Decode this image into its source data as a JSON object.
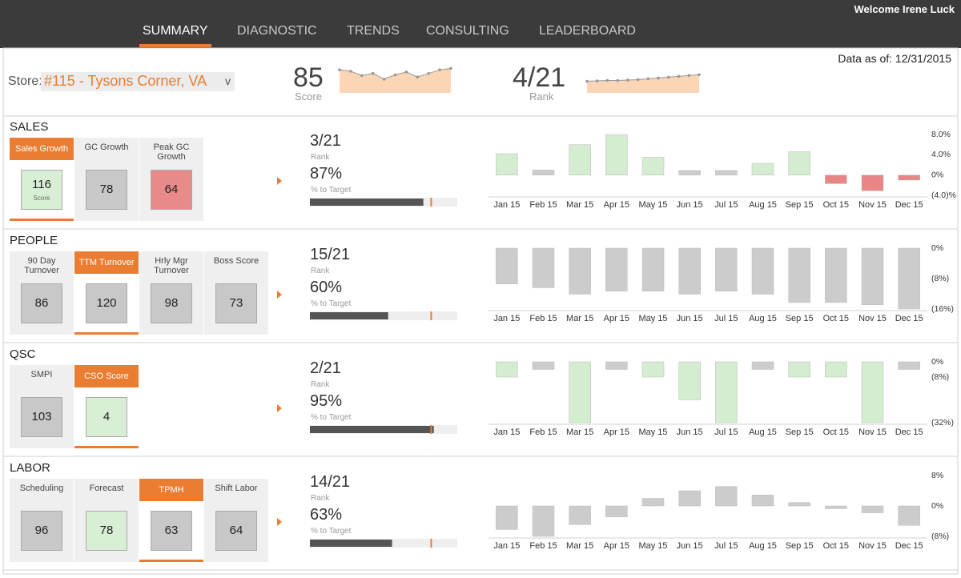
{
  "header": {
    "welcome": "Welcome Irene Luck",
    "tabs": [
      "SUMMARY",
      "DIAGNOSTIC",
      "TRENDS",
      "CONSULTING",
      "LEADERBOARD"
    ],
    "active_tab": 0
  },
  "store": {
    "label": "Store:",
    "name": "#115 - Tysons Corner, VA",
    "caret": "v"
  },
  "score": {
    "value": 85,
    "caption": "Score"
  },
  "rank": {
    "value": "4/21",
    "caption": "Rank"
  },
  "data_as_of": "Data as of: 12/31/2015",
  "sections": [
    {
      "title": "SALES",
      "rank": "3/21",
      "rank_caption": "Rank",
      "pct": {
        "value": 87,
        "label": "87%"
      },
      "pct_caption": "% to Target",
      "target": 93,
      "progress_max": 113,
      "tiles": [
        {
          "label": "Sales Growth",
          "value": 116,
          "sub": "Score",
          "color": "#d9efd5",
          "active": true
        },
        {
          "label": "GC Growth",
          "value": 78,
          "color": "#c8c8c8",
          "active": false
        },
        {
          "label": "Peak GC Growth",
          "value": 64,
          "color": "#e88a8a",
          "active": false
        }
      ]
    },
    {
      "title": "PEOPLE",
      "rank": "15/21",
      "rank_caption": "Rank",
      "pct": {
        "value": 60,
        "label": "60%"
      },
      "pct_caption": "% to Target",
      "target": 93,
      "progress_max": 113,
      "tiles": [
        {
          "label": "90 Day Turnover",
          "value": 86,
          "color": "#c8c8c8",
          "active": false
        },
        {
          "label": "TTM Turnover",
          "value": 120,
          "color": "#c8c8c8",
          "active": true
        },
        {
          "label": "Hrly Mgr Turnover",
          "value": 98,
          "color": "#c8c8c8",
          "active": false
        },
        {
          "label": "Boss Score",
          "value": 73,
          "color": "#c8c8c8",
          "active": false
        }
      ]
    },
    {
      "title": "QSC",
      "rank": "2/21",
      "rank_caption": "Rank",
      "pct": {
        "value": 95,
        "label": "95%"
      },
      "pct_caption": "% to Target",
      "target": 93,
      "progress_max": 113,
      "tiles": [
        {
          "label": "SMPI",
          "value": 103,
          "color": "#c8c8c8",
          "active": false
        },
        {
          "label": "CSO Score",
          "value": 4,
          "color": "#d9efd5",
          "active": true
        }
      ]
    },
    {
      "title": "LABOR",
      "rank": "14/21",
      "rank_caption": "Rank",
      "pct": {
        "value": 63,
        "label": "63%"
      },
      "pct_caption": "% to Target",
      "target": 93,
      "progress_max": 113,
      "tiles": [
        {
          "label": "Scheduling",
          "value": 96,
          "color": "#c8c8c8",
          "active": false
        },
        {
          "label": "Forecast",
          "value": 78,
          "color": "#d9efd5",
          "active": false
        },
        {
          "label": "TPMH",
          "value": 63,
          "color": "#c8c8c8",
          "active": true
        },
        {
          "label": "Shift Labor",
          "value": 64,
          "color": "#c8c8c8",
          "active": false
        }
      ]
    }
  ],
  "chart_data": [
    {
      "type": "area",
      "values": [
        92,
        90,
        84,
        87,
        79,
        85,
        89,
        82,
        87,
        92,
        94
      ],
      "ylim": [
        60,
        100
      ],
      "color": "#fcd5b5"
    },
    {
      "type": "area",
      "values": [
        14,
        14.5,
        15,
        15,
        15.5,
        16,
        17,
        18,
        19,
        20,
        21,
        22
      ],
      "ylim": [
        0,
        30
      ],
      "color": "#fcd5b5"
    },
    {
      "type": "bar",
      "categories": [
        "Jan 15",
        "Feb 15",
        "Mar 15",
        "Apr 15",
        "May 15",
        "Jun 15",
        "Jul 15",
        "Aug 15",
        "Sep 15",
        "Oct 15",
        "Nov 15",
        "Dec 15"
      ],
      "values": [
        4.2,
        1,
        6,
        8,
        3.5,
        0.9,
        0.9,
        2.3,
        4.6,
        -1.7,
        -3.1,
        -1
      ],
      "colors": [
        "#d4ecd0",
        "#cccccc",
        "#d4ecd0",
        "#d4ecd0",
        "#d4ecd0",
        "#cccccc",
        "#cccccc",
        "#d4ecd0",
        "#d4ecd0",
        "#e88585",
        "#e88585",
        "#e88585"
      ],
      "ylim": [
        -4,
        8
      ],
      "yticks": [
        {
          "value": 8,
          "label": "8.0%"
        },
        {
          "value": 4,
          "label": "4.0%"
        },
        {
          "value": 0,
          "label": "0%"
        },
        {
          "value": -4,
          "label": "(4.0)%"
        }
      ]
    },
    {
      "type": "bar",
      "categories": [
        "Jan 15",
        "Feb 15",
        "Mar 15",
        "Apr 15",
        "May 15",
        "Jun 15",
        "Jul 15",
        "Aug 15",
        "Sep 15",
        "Oct 15",
        "Nov 15",
        "Dec 15"
      ],
      "values": [
        -9.4,
        -10.4,
        -12.1,
        -11.3,
        -11.3,
        -12.1,
        -11.3,
        -12.1,
        -14.3,
        -14.3,
        -14.9,
        -16
      ],
      "colors": [
        "#cccccc",
        "#cccccc",
        "#cccccc",
        "#cccccc",
        "#cccccc",
        "#cccccc",
        "#cccccc",
        "#cccccc",
        "#cccccc",
        "#cccccc",
        "#cccccc",
        "#cccccc"
      ],
      "ylim": [
        -16,
        0
      ],
      "yticks": [
        {
          "value": 0,
          "label": "0%"
        },
        {
          "value": -8,
          "label": "(8%)"
        },
        {
          "value": -16,
          "label": "(16%)"
        }
      ]
    },
    {
      "type": "bar",
      "categories": [
        "Jan 15",
        "Feb 15",
        "Mar 15",
        "Apr 15",
        "May 15",
        "Jun 15",
        "Jul 15",
        "Aug 15",
        "Sep 15",
        "Oct 15",
        "Nov 15",
        "Dec 15"
      ],
      "values": [
        -8,
        -4,
        -32,
        -4,
        -8,
        -20,
        -32,
        -4,
        -8,
        -8,
        -32,
        -4
      ],
      "colors": [
        "#d4ecd0",
        "#cccccc",
        "#d4ecd0",
        "#cccccc",
        "#d4ecd0",
        "#d4ecd0",
        "#d4ecd0",
        "#cccccc",
        "#d4ecd0",
        "#d4ecd0",
        "#d4ecd0",
        "#cccccc"
      ],
      "ylim": [
        -32,
        0
      ],
      "yticks": [
        {
          "value": 0,
          "label": "0%"
        },
        {
          "value": -8,
          "label": "(8%)"
        },
        {
          "value": -32,
          "label": "(32%)"
        }
      ]
    },
    {
      "type": "bar",
      "categories": [
        "Jan 15",
        "Feb 15",
        "Mar 15",
        "Apr 15",
        "May 15",
        "Jun 15",
        "Jul 15",
        "Aug 15",
        "Sep 15",
        "Oct 15",
        "Nov 15",
        "Dec 15"
      ],
      "values": [
        -6.2,
        -8,
        -4.9,
        -2.9,
        2,
        4,
        5.1,
        2.9,
        0.9,
        -0.7,
        -1.8,
        -5.1
      ],
      "colors": [
        "#cccccc",
        "#cccccc",
        "#cccccc",
        "#cccccc",
        "#cccccc",
        "#cccccc",
        "#cccccc",
        "#cccccc",
        "#cccccc",
        "#cccccc",
        "#cccccc",
        "#cccccc"
      ],
      "ylim": [
        -8,
        8
      ],
      "yticks": [
        {
          "value": 8,
          "label": "8%"
        },
        {
          "value": 0,
          "label": "0%"
        },
        {
          "value": -8,
          "label": "(8%)"
        }
      ]
    }
  ]
}
